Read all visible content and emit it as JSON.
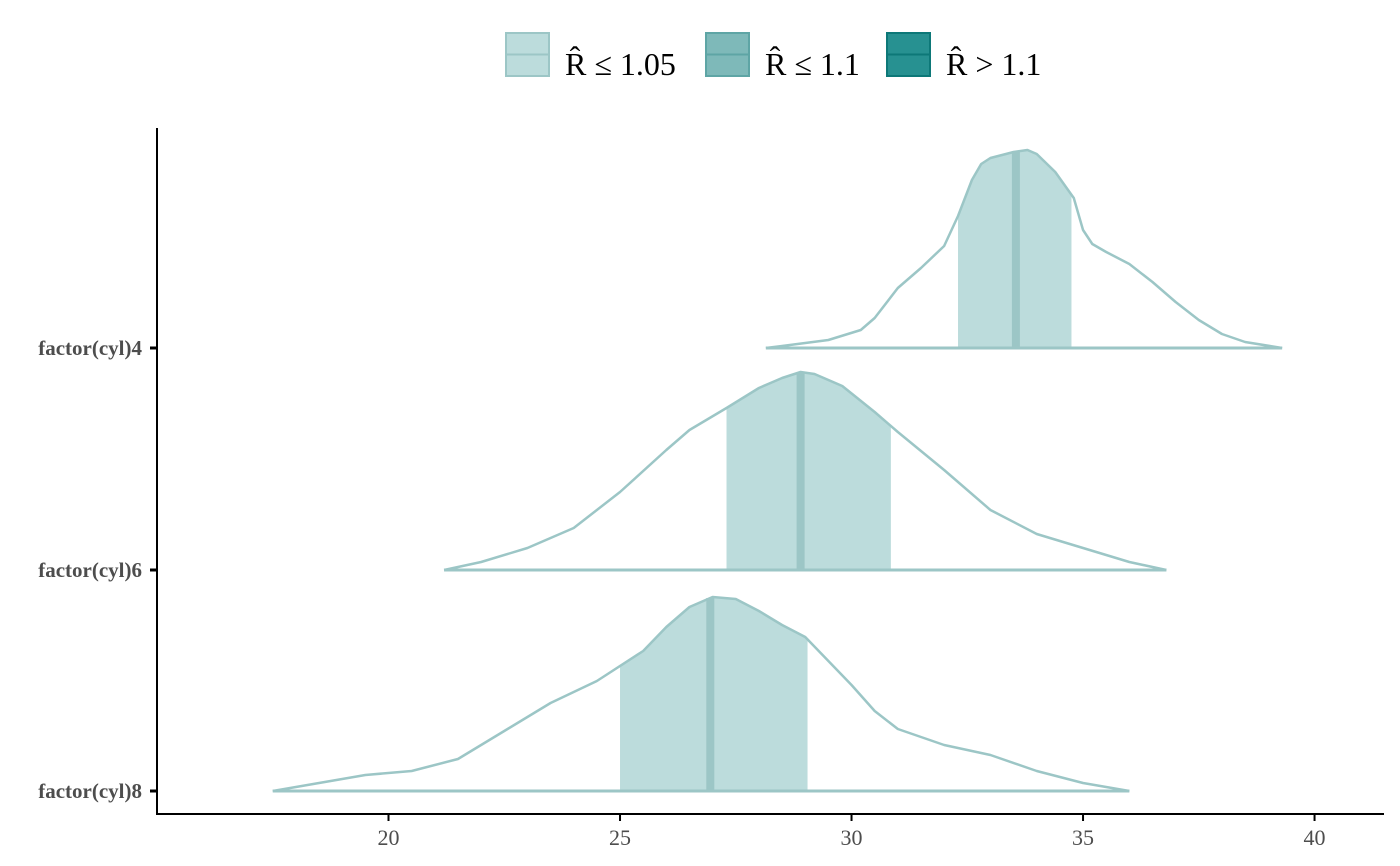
{
  "chart_data": {
    "type": "area",
    "subtype": "ridgeline-density",
    "xlim": [
      15,
      41.5
    ],
    "x_ticks": [
      20,
      25,
      30,
      35,
      40
    ],
    "grid": false,
    "legend": {
      "position": "top",
      "entries": [
        {
          "label": "R̂ ≤ 1.05",
          "fill": "#bcdcdc",
          "stroke": "#9cc6c6"
        },
        {
          "label": "R̂ ≤ 1.1",
          "fill": "#7eb9b9",
          "stroke": "#5ea5a5"
        },
        {
          "label": "R̂ > 1.1",
          "fill": "#279191",
          "stroke": "#0d7878"
        }
      ]
    },
    "series": [
      {
        "name": "factor(cyl)4",
        "interval": [
          32.3,
          34.75
        ],
        "median": 33.55,
        "density": [
          [
            28.15,
            0
          ],
          [
            28.5,
            0.01
          ],
          [
            29.5,
            0.04
          ],
          [
            30.2,
            0.09
          ],
          [
            30.5,
            0.15
          ],
          [
            31.0,
            0.3
          ],
          [
            31.5,
            0.4
          ],
          [
            32.0,
            0.51
          ],
          [
            32.3,
            0.66
          ],
          [
            32.6,
            0.84
          ],
          [
            32.8,
            0.92
          ],
          [
            33.0,
            0.95
          ],
          [
            33.5,
            0.98
          ],
          [
            33.8,
            0.99
          ],
          [
            34.0,
            0.97
          ],
          [
            34.4,
            0.88
          ],
          [
            34.8,
            0.75
          ],
          [
            35.0,
            0.59
          ],
          [
            35.2,
            0.52
          ],
          [
            35.5,
            0.48
          ],
          [
            36.0,
            0.42
          ],
          [
            36.5,
            0.33
          ],
          [
            37.0,
            0.23
          ],
          [
            37.5,
            0.14
          ],
          [
            38.0,
            0.07
          ],
          [
            38.5,
            0.03
          ],
          [
            39.3,
            0
          ]
        ]
      },
      {
        "name": "factor(cyl)6",
        "interval": [
          27.3,
          30.85
        ],
        "median": 28.9,
        "density": [
          [
            21.2,
            0
          ],
          [
            22.0,
            0.04
          ],
          [
            23.0,
            0.11
          ],
          [
            24.0,
            0.21
          ],
          [
            25.0,
            0.39
          ],
          [
            26.0,
            0.6
          ],
          [
            26.5,
            0.7
          ],
          [
            27.3,
            0.81
          ],
          [
            28.0,
            0.91
          ],
          [
            28.5,
            0.96
          ],
          [
            28.9,
            0.99
          ],
          [
            29.2,
            0.98
          ],
          [
            29.8,
            0.92
          ],
          [
            30.5,
            0.79
          ],
          [
            31.0,
            0.69
          ],
          [
            32.0,
            0.5
          ],
          [
            33.0,
            0.3
          ],
          [
            34.0,
            0.18
          ],
          [
            35.0,
            0.11
          ],
          [
            36.0,
            0.04
          ],
          [
            36.8,
            0
          ]
        ]
      },
      {
        "name": "factor(cyl)8",
        "interval": [
          25.0,
          29.05
        ],
        "median": 26.95,
        "density": [
          [
            17.5,
            0
          ],
          [
            18.5,
            0.04
          ],
          [
            19.5,
            0.08
          ],
          [
            20.5,
            0.1
          ],
          [
            21.5,
            0.16
          ],
          [
            22.5,
            0.3
          ],
          [
            23.5,
            0.44
          ],
          [
            24.5,
            0.55
          ],
          [
            25.5,
            0.7
          ],
          [
            26.0,
            0.82
          ],
          [
            26.5,
            0.92
          ],
          [
            27.0,
            0.97
          ],
          [
            27.5,
            0.96
          ],
          [
            28.0,
            0.9
          ],
          [
            28.5,
            0.83
          ],
          [
            29.0,
            0.77
          ],
          [
            29.5,
            0.65
          ],
          [
            30.0,
            0.53
          ],
          [
            30.5,
            0.4
          ],
          [
            31.0,
            0.31
          ],
          [
            32.0,
            0.23
          ],
          [
            33.0,
            0.18
          ],
          [
            34.0,
            0.1
          ],
          [
            35.0,
            0.04
          ],
          [
            36.0,
            0
          ]
        ]
      }
    ]
  }
}
